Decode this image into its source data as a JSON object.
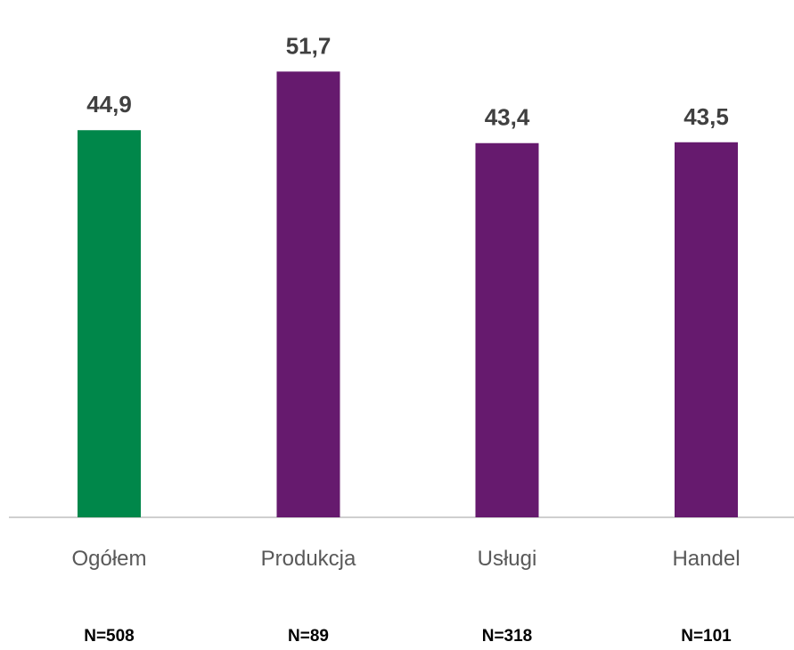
{
  "chart_data": {
    "type": "bar",
    "categories": [
      "Ogółem",
      "Produkcja",
      "Usługi",
      "Handel"
    ],
    "values": [
      44.9,
      51.7,
      43.4,
      43.5
    ],
    "value_labels": [
      "44,9",
      "51,7",
      "43,4",
      "43,5"
    ],
    "sample_sizes": [
      "N=508",
      "N=89",
      "N=318",
      "N=101"
    ],
    "colors": [
      "#00874A",
      "#661A6E",
      "#661A6E",
      "#661A6E"
    ],
    "title": "",
    "xlabel": "",
    "ylabel": "",
    "ylim": [
      0,
      60
    ],
    "grid": false,
    "legend": "none"
  }
}
